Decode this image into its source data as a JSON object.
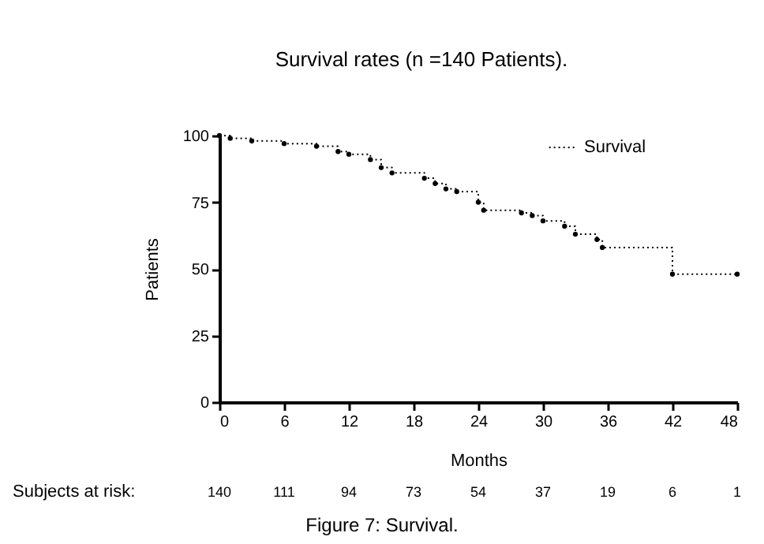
{
  "chart_data": {
    "type": "step",
    "title": "Survival rates (n =140 Patients).",
    "xlabel": "Months",
    "ylabel": "Patients",
    "x": [
      0,
      1,
      3,
      6,
      9,
      11,
      12,
      14,
      15,
      16,
      19,
      20,
      21,
      22,
      24,
      24.5,
      28,
      29,
      30,
      32,
      33,
      35,
      35.5,
      42,
      48
    ],
    "series": [
      {
        "name": "Survival",
        "color": "#000000",
        "values": [
          100,
          99,
          98,
          97,
          96,
          94,
          93,
          91,
          88,
          86,
          84,
          82,
          80,
          79,
          75,
          72,
          71,
          70,
          68,
          66,
          63,
          61,
          58,
          48,
          48
        ]
      }
    ],
    "xlim": [
      0,
      48
    ],
    "xticks": [
      0,
      6,
      12,
      18,
      24,
      30,
      36,
      42,
      48
    ],
    "ylim": [
      0,
      100
    ],
    "yticks": [
      0,
      25,
      50,
      75,
      100
    ],
    "grid": false,
    "legend": "top right",
    "marker": "circle",
    "line_style": "dotted",
    "annotations": [
      "Subjects at risk:",
      "140",
      "111",
      "94",
      "73",
      "54",
      "37",
      "19",
      "6",
      "1",
      "Figure 7: Survival."
    ]
  }
}
